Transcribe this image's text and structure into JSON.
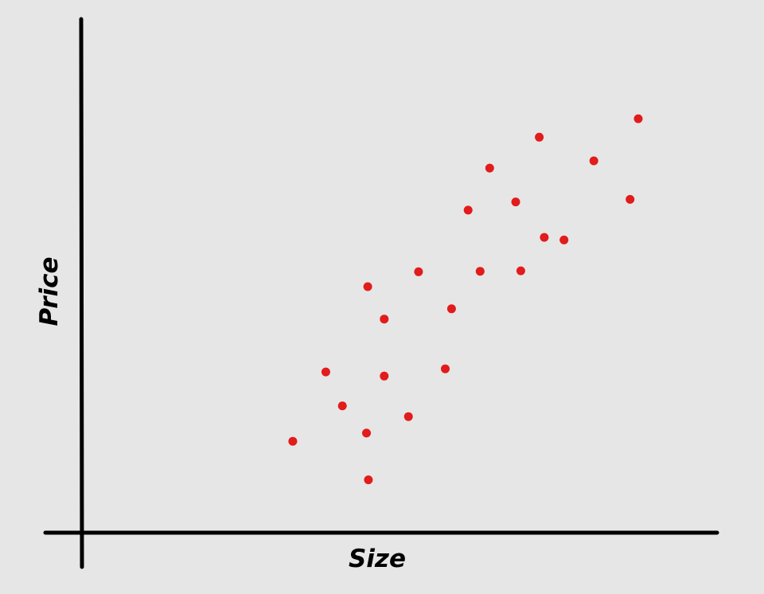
{
  "chart_data": {
    "type": "scatter",
    "xlabel": "Size",
    "ylabel": "Price",
    "xlim": [
      0,
      100
    ],
    "ylim": [
      0,
      100
    ],
    "grid": false,
    "point_color": "#e21b1b",
    "axis_color": "#000000",
    "background_color": "#e6e6e6",
    "points": [
      {
        "x": 33.2,
        "y": 17.8
      },
      {
        "x": 38.4,
        "y": 31.3
      },
      {
        "x": 41.0,
        "y": 24.7
      },
      {
        "x": 44.8,
        "y": 19.4
      },
      {
        "x": 45.1,
        "y": 10.3
      },
      {
        "x": 45.0,
        "y": 47.9
      },
      {
        "x": 47.6,
        "y": 41.6
      },
      {
        "x": 47.6,
        "y": 30.5
      },
      {
        "x": 51.4,
        "y": 22.6
      },
      {
        "x": 53.0,
        "y": 50.8
      },
      {
        "x": 57.2,
        "y": 31.9
      },
      {
        "x": 58.2,
        "y": 43.6
      },
      {
        "x": 60.8,
        "y": 62.8
      },
      {
        "x": 62.7,
        "y": 50.9
      },
      {
        "x": 64.2,
        "y": 71.0
      },
      {
        "x": 68.3,
        "y": 64.4
      },
      {
        "x": 69.1,
        "y": 51.0
      },
      {
        "x": 72.0,
        "y": 77.0
      },
      {
        "x": 72.8,
        "y": 57.5
      },
      {
        "x": 75.9,
        "y": 57.0
      },
      {
        "x": 80.6,
        "y": 72.4
      },
      {
        "x": 86.3,
        "y": 64.9
      },
      {
        "x": 87.6,
        "y": 80.6
      }
    ]
  }
}
